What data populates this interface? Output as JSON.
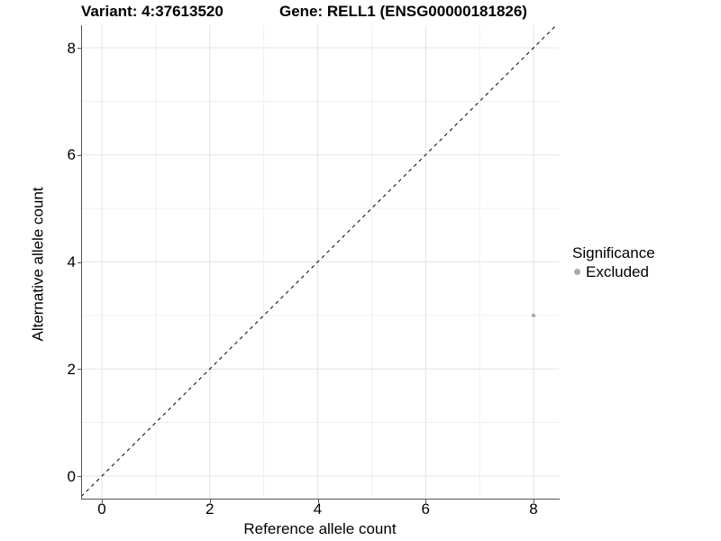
{
  "title": {
    "left": "Variant: 4:37613520",
    "right": "Gene: RELL1 (ENSG00000181826)"
  },
  "chart_data": {
    "type": "scatter",
    "title": "Variant: 4:37613520   Gene: RELL1 (ENSG00000181826)",
    "xlabel": "Reference allele count",
    "ylabel": "Alternative allele count",
    "xlim": [
      -0.4,
      8.45
    ],
    "ylim": [
      -0.42,
      8.42
    ],
    "x_ticks": [
      0,
      2,
      4,
      6,
      8
    ],
    "y_ticks": [
      0,
      2,
      4,
      6,
      8
    ],
    "x_minor_ticks": [
      1,
      3,
      5,
      7
    ],
    "y_minor_ticks": [
      1,
      3,
      5,
      7
    ],
    "grid": true,
    "reference_line": {
      "type": "identity",
      "equation": "y = x",
      "style": "dashed",
      "color": "#000000"
    },
    "series": [
      {
        "name": "Excluded",
        "color": "#ababab",
        "points": [
          {
            "x": 8,
            "y": 3
          }
        ]
      }
    ],
    "legend": {
      "title": "Significance",
      "position": "right",
      "entries": [
        {
          "label": "Excluded",
          "color": "#ababab"
        }
      ]
    }
  },
  "colors": {
    "background": "#ffffff",
    "axis_line": "#555555",
    "grid_major": "#e4e4e4",
    "grid_minor": "#efefef",
    "point": "#ababab",
    "text": "#000000",
    "reference_line": "#000000"
  }
}
